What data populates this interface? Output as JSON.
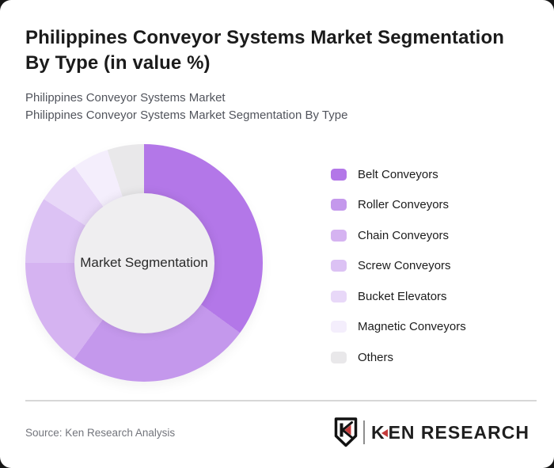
{
  "title_line1": "Philippines Conveyor Systems Market Segmentation",
  "title_line2": "By Type (in value %)",
  "subtitle_line1": "Philippines Conveyor Systems Market",
  "subtitle_line2": "Philippines Conveyor Systems Market Segmentation By Type",
  "chart_data": {
    "type": "pie",
    "variant": "donut",
    "title": "Philippines Conveyor Systems Market Segmentation By Type (in value %)",
    "center_label": "Market Segmentation",
    "unit": "%",
    "start_angle_deg": 0,
    "direction": "clockwise",
    "legend_position": "right",
    "categories": [
      "Belt Conveyors",
      "Roller Conveyors",
      "Chain Conveyors",
      "Screw Conveyors",
      "Bucket Elevators",
      "Magnetic Conveyors",
      "Others"
    ],
    "values": [
      35,
      25,
      15,
      9,
      6,
      5,
      5
    ],
    "colors": [
      "#b377e8",
      "#c498ec",
      "#d5b3f1",
      "#dcc2f4",
      "#e8d8f8",
      "#f4eefc",
      "#e9e8ea"
    ],
    "hole_color": "#efeef0"
  },
  "footer": {
    "source_label": "Source: Ken Research Analysis",
    "brand_k": "K",
    "brand_rest": "EN RESEARCH",
    "brand_accent_color": "#c43a3a"
  }
}
